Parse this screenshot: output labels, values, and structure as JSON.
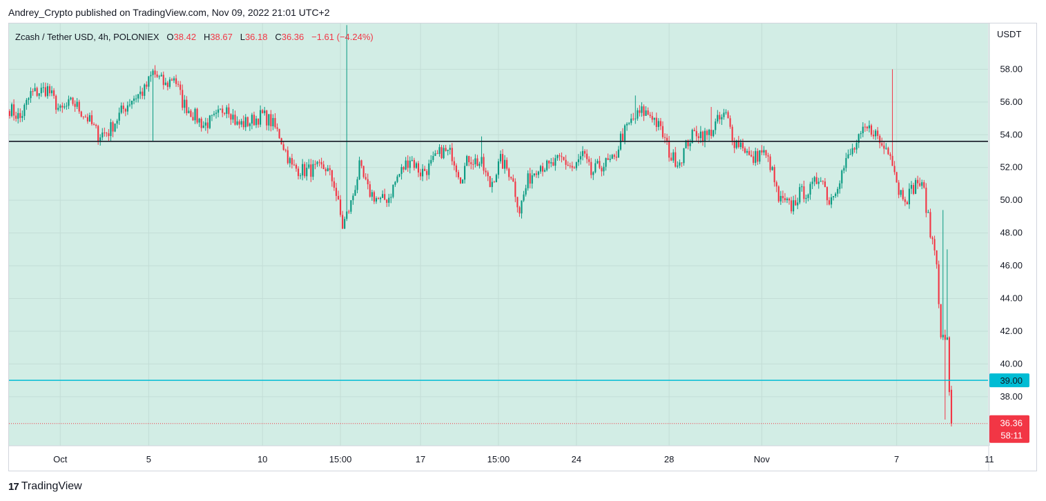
{
  "header": {
    "published_text": "Andrey_Crypto published on TradingView.com, Nov 09, 2022 21:01 UTC+2"
  },
  "legend": {
    "symbol": "Zcash / Tether USD, 4h, POLONIEX",
    "open_label": "O",
    "open_value": "38.42",
    "high_label": "H",
    "high_value": "38.67",
    "low_label": "L",
    "low_value": "36.18",
    "close_label": "C",
    "close_value": "36.36",
    "change": "−1.61 (−4.24%)"
  },
  "currency": "USDT",
  "footer": {
    "brand": "TradingView",
    "logo": "17"
  },
  "colors": {
    "background": "#d2ede5",
    "bull": "#089981",
    "bear": "#f23645",
    "support_line": "#00bcd4",
    "resistance_line": "#131722"
  },
  "chart_data": {
    "type": "candlestick",
    "title": "Zcash / Tether USD, 4h, POLONIEX",
    "ylabel": "USDT",
    "ylim": [
      35.0,
      60.8
    ],
    "y_ticks": [
      "58.00",
      "56.00",
      "54.00",
      "52.00",
      "50.00",
      "48.00",
      "46.00",
      "44.00",
      "42.00",
      "40.00",
      "38.00"
    ],
    "x_ticks": [
      {
        "label": "Oct",
        "i": 24
      },
      {
        "label": "5",
        "i": 66
      },
      {
        "label": "10",
        "i": 120
      },
      {
        "label": "15:00",
        "i": 157
      },
      {
        "label": "17",
        "i": 195
      },
      {
        "label": "15:00",
        "i": 232
      },
      {
        "label": "24",
        "i": 269
      },
      {
        "label": "28",
        "i": 313
      },
      {
        "label": "Nov",
        "i": 357
      },
      {
        "label": "7",
        "i": 421
      },
      {
        "label": "11",
        "i": 465
      }
    ],
    "horizontal_lines": [
      {
        "price": 53.6,
        "style": "resistance"
      },
      {
        "price": 39.0,
        "style": "support",
        "label": "39.00"
      }
    ],
    "last_price": {
      "price": 36.36,
      "label": "36.36",
      "countdown": "58:11"
    },
    "candle_count": 448,
    "anchors": [
      [
        0,
        55.6
      ],
      [
        5,
        55.0
      ],
      [
        10,
        56.5
      ],
      [
        18,
        56.8
      ],
      [
        24,
        55.4
      ],
      [
        30,
        56.0
      ],
      [
        37,
        55.0
      ],
      [
        42,
        54.0
      ],
      [
        47,
        54.2
      ],
      [
        53,
        55.4
      ],
      [
        58,
        56.2
      ],
      [
        64,
        56.7
      ],
      [
        68,
        57.8
      ],
      [
        74,
        57.0
      ],
      [
        78,
        57.6
      ],
      [
        82,
        56.0
      ],
      [
        86,
        55.4
      ],
      [
        92,
        54.6
      ],
      [
        98,
        55.0
      ],
      [
        103,
        55.9
      ],
      [
        108,
        54.6
      ],
      [
        114,
        54.8
      ],
      [
        120,
        55.2
      ],
      [
        124,
        54.8
      ],
      [
        128,
        54.0
      ],
      [
        131,
        53.0
      ],
      [
        134,
        52.0
      ],
      [
        140,
        51.8
      ],
      [
        146,
        51.9
      ],
      [
        150,
        52.0
      ],
      [
        154,
        51.0
      ],
      [
        158,
        48.4
      ],
      [
        162,
        49.8
      ],
      [
        166,
        52.0
      ],
      [
        170,
        50.6
      ],
      [
        176,
        49.9
      ],
      [
        180,
        50.2
      ],
      [
        184,
        51.4
      ],
      [
        190,
        52.6
      ],
      [
        195,
        51.7
      ],
      [
        199,
        52.0
      ],
      [
        205,
        53.0
      ],
      [
        210,
        52.8
      ],
      [
        214,
        51.4
      ],
      [
        218,
        52.6
      ],
      [
        224,
        52.2
      ],
      [
        228,
        50.9
      ],
      [
        233,
        52.4
      ],
      [
        238,
        51.6
      ],
      [
        242,
        49.4
      ],
      [
        246,
        51.2
      ],
      [
        251,
        52.2
      ],
      [
        256,
        52.0
      ],
      [
        262,
        52.5
      ],
      [
        268,
        51.9
      ],
      [
        272,
        52.8
      ],
      [
        276,
        51.6
      ],
      [
        280,
        52.1
      ],
      [
        287,
        52.4
      ],
      [
        290,
        53.8
      ],
      [
        295,
        54.8
      ],
      [
        300,
        55.4
      ],
      [
        305,
        55.2
      ],
      [
        310,
        54.0
      ],
      [
        314,
        52.6
      ],
      [
        318,
        52.4
      ],
      [
        322,
        53.6
      ],
      [
        326,
        54.2
      ],
      [
        331,
        53.9
      ],
      [
        336,
        54.8
      ],
      [
        340,
        55.2
      ],
      [
        344,
        53.6
      ],
      [
        348,
        53.4
      ],
      [
        352,
        52.4
      ],
      [
        357,
        53.0
      ],
      [
        361,
        52.2
      ],
      [
        365,
        50.0
      ],
      [
        371,
        49.6
      ],
      [
        375,
        50.4
      ],
      [
        380,
        50.6
      ],
      [
        385,
        51.6
      ],
      [
        389,
        49.9
      ],
      [
        394,
        51.4
      ],
      [
        398,
        52.6
      ],
      [
        402,
        53.4
      ],
      [
        406,
        54.3
      ],
      [
        410,
        54.3
      ],
      [
        414,
        53.3
      ],
      [
        418,
        53.1
      ],
      [
        422,
        50.6
      ],
      [
        426,
        50.2
      ],
      [
        431,
        51.2
      ],
      [
        434,
        50.5
      ],
      [
        437,
        48.0
      ],
      [
        440,
        46.5
      ],
      [
        442,
        41.4
      ],
      [
        444,
        41.7
      ],
      [
        445,
        41.3
      ],
      [
        446,
        38.0
      ],
      [
        447,
        36.36
      ]
    ],
    "wick_events": [
      {
        "i": 160,
        "high": 60.7
      },
      {
        "i": 224,
        "high": 53.9
      },
      {
        "i": 297,
        "high": 56.4
      },
      {
        "i": 333,
        "high": 55.7
      },
      {
        "i": 419,
        "high": 58.0
      },
      {
        "i": 443,
        "high": 49.4
      },
      {
        "i": 444,
        "low": 36.6
      },
      {
        "i": 445,
        "high": 47.0
      },
      {
        "i": 68,
        "low": 53.6
      }
    ]
  }
}
